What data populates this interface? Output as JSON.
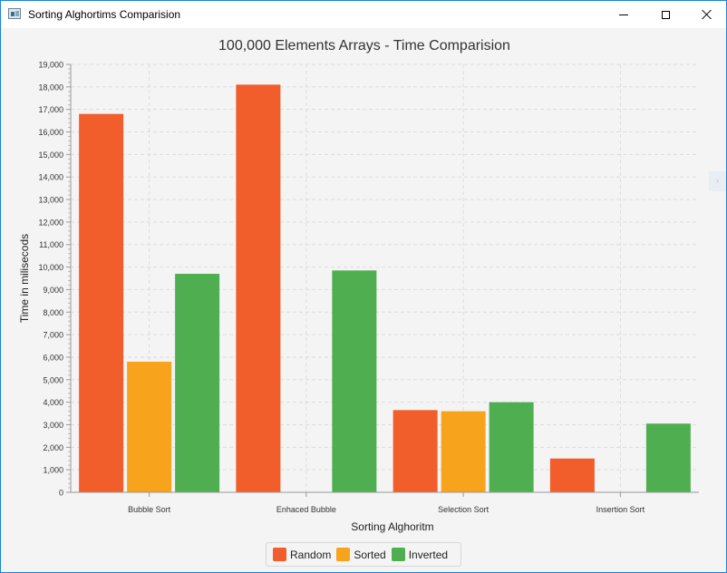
{
  "window": {
    "title": "Sorting Alghortims Comparision",
    "icon": "app-window-icon",
    "controls": [
      "minimize-icon",
      "maximize-icon",
      "close-icon"
    ]
  },
  "side_tab": {
    "icon": "collapse-arrow-icon",
    "glyph": "›"
  },
  "chart_data": {
    "type": "bar",
    "title": "100,000 Elements Arrays - Time Comparision",
    "xlabel": "Sorting Alghoritm",
    "ylabel": "Time in milisecods",
    "categories": [
      "Bubble Sort",
      "Enhaced Bubble",
      "Selection Sort",
      "Insertion Sort"
    ],
    "series": [
      {
        "name": "Random",
        "color": "#f15d2b",
        "values": [
          16800,
          18100,
          3650,
          1500
        ]
      },
      {
        "name": "Sorted",
        "color": "#f8a31c",
        "values": [
          5800,
          0,
          3600,
          0
        ]
      },
      {
        "name": "Inverted",
        "color": "#4faf50",
        "values": [
          9700,
          9850,
          4000,
          3050
        ]
      }
    ],
    "ylim": [
      0,
      19000
    ],
    "yticks": [
      "0",
      "1,000",
      "2,000",
      "3,000",
      "4,000",
      "5,000",
      "6,000",
      "7,000",
      "8,000",
      "9,000",
      "10,000",
      "11,000",
      "12,000",
      "13,000",
      "14,000",
      "15,000",
      "16,000",
      "17,000",
      "18,000",
      "19,000"
    ],
    "ytick_step": 1000,
    "grid": true,
    "legend_position": "bottom-center"
  }
}
